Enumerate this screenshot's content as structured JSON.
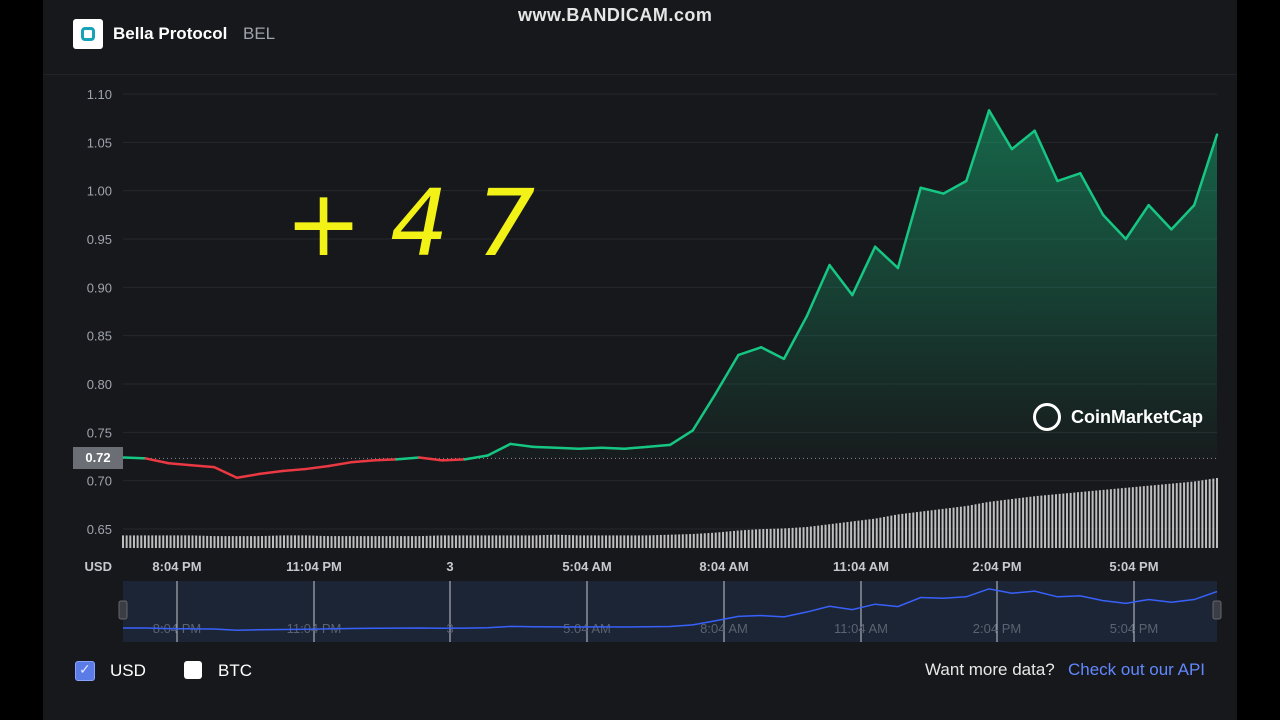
{
  "watermark": "www.BANDICAM.com",
  "header": {
    "coin_name": "Bella Protocol",
    "symbol": "BEL"
  },
  "annotation": "+47",
  "current_price_label": "0.72",
  "brand": {
    "name": "CoinMarketCap"
  },
  "footer": {
    "usd_label": "USD",
    "btc_label": "BTC",
    "more_data_text": "Want more data?",
    "api_link_text": "Check out our API"
  },
  "colors": {
    "up": "#16c784",
    "down": "#ea3943",
    "navigator": "#3861fb",
    "background": "#17181b"
  },
  "chart_data": {
    "type": "area",
    "ylabel": "USD",
    "ylim": [
      0.65,
      1.1
    ],
    "yticks": [
      "1.10",
      "1.05",
      "1.00",
      "0.95",
      "0.90",
      "0.85",
      "0.80",
      "0.75",
      "0.70",
      "0.65"
    ],
    "xticks": [
      "8:04 PM",
      "11:04 PM",
      "3",
      "5:04 AM",
      "8:04 AM",
      "11:04 AM",
      "2:04 PM",
      "5:04 PM"
    ],
    "reference_price": 0.723,
    "x_hours": [
      0,
      0.5,
      1,
      1.5,
      2,
      2.5,
      3,
      3.5,
      4,
      4.5,
      5,
      5.5,
      6,
      6.5,
      7,
      7.5,
      8,
      8.5,
      9,
      9.5,
      10,
      10.5,
      11,
      11.5,
      12,
      12.5,
      13,
      13.5,
      14,
      14.5,
      15,
      15.5,
      16,
      16.5,
      17,
      17.5,
      18,
      18.5,
      19,
      19.5,
      20,
      20.5,
      21,
      21.5,
      22,
      22.5,
      23,
      23.5,
      24
    ],
    "price": [
      0.724,
      0.723,
      0.718,
      0.716,
      0.714,
      0.703,
      0.707,
      0.71,
      0.712,
      0.715,
      0.719,
      0.721,
      0.722,
      0.724,
      0.721,
      0.722,
      0.726,
      0.738,
      0.735,
      0.734,
      0.733,
      0.734,
      0.733,
      0.735,
      0.737,
      0.752,
      0.79,
      0.83,
      0.838,
      0.826,
      0.87,
      0.923,
      0.892,
      0.942,
      0.92,
      1.003,
      0.997,
      1.01,
      1.083,
      1.043,
      1.062,
      1.01,
      1.018,
      0.975,
      0.95,
      0.985,
      0.96,
      0.985,
      1.058
    ],
    "volume": [
      0.18,
      0.18,
      0.18,
      0.18,
      0.17,
      0.17,
      0.17,
      0.18,
      0.18,
      0.17,
      0.17,
      0.17,
      0.17,
      0.17,
      0.18,
      0.18,
      0.18,
      0.18,
      0.18,
      0.19,
      0.18,
      0.18,
      0.18,
      0.18,
      0.19,
      0.2,
      0.22,
      0.25,
      0.27,
      0.28,
      0.3,
      0.34,
      0.38,
      0.42,
      0.48,
      0.52,
      0.56,
      0.6,
      0.66,
      0.7,
      0.74,
      0.77,
      0.8,
      0.83,
      0.86,
      0.89,
      0.92,
      0.95,
      1.0
    ]
  }
}
